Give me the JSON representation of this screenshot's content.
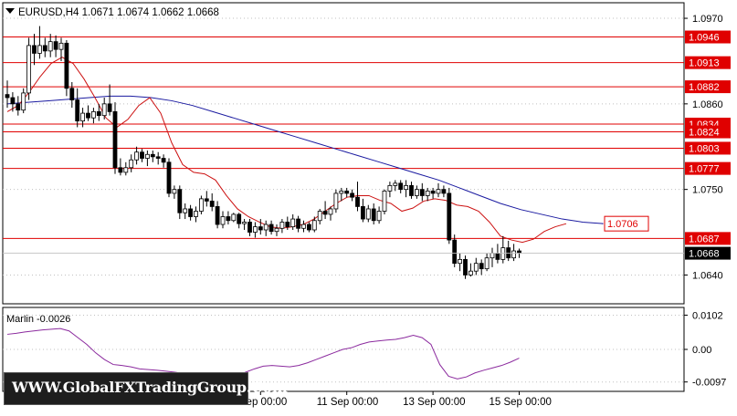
{
  "header": {
    "symbol_line": "EURUSD,H4  1.0671 1.0674 1.0662 1.0668"
  },
  "indicator": {
    "label": "Marlin -0.0026"
  },
  "watermark": {
    "text": "WWW.GlobalFXTradingGroup.Com"
  },
  "colors": {
    "background": "#ffffff",
    "grid": "#c0c0c0",
    "candle": "#000000",
    "level_line": "#e00000",
    "ma_slow": "#1a1aa0",
    "ma_fast": "#cc1111",
    "oscillator": "#8b2a9e"
  },
  "chart_data": [
    {
      "type": "candlestick",
      "title": "EURUSD,H4",
      "ohlc_readout": {
        "open": 1.0671,
        "high": 1.0674,
        "low": 1.0662,
        "close": 1.0668
      },
      "y_ticks": [
        "1.0970",
        "1.0860",
        "1.0750",
        "1.0640"
      ],
      "y_range": [
        1.0603,
        1.099
      ],
      "x_ticks": [
        {
          "label": "7 Sep 00:00",
          "bar": 47
        },
        {
          "label": "11 Sep 00:00",
          "bar": 63
        },
        {
          "label": "13 Sep 00:00",
          "bar": 79
        },
        {
          "label": "15 Sep 00:00",
          "bar": 95
        }
      ],
      "levels": [
        {
          "value": 1.0946,
          "label": "1.0946"
        },
        {
          "value": 1.0913,
          "label": "1.0913"
        },
        {
          "value": 1.0882,
          "label": "1.0882"
        },
        {
          "value": 1.0834,
          "label": "1.0834"
        },
        {
          "value": 1.0824,
          "label": "1.0824"
        },
        {
          "value": 1.0803,
          "label": "1.0803"
        },
        {
          "value": 1.0777,
          "label": "1.0777"
        },
        {
          "value": 1.0687,
          "label": "1.0687"
        }
      ],
      "price_tags": [
        {
          "value": 1.0706,
          "label": "1.0706"
        },
        {
          "value": 1.0668,
          "label": "1.0668"
        }
      ],
      "candles": [
        [
          1.0872,
          1.089,
          1.0855,
          1.0868
        ],
        [
          1.0868,
          1.0875,
          1.085,
          1.086
        ],
        [
          1.086,
          1.087,
          1.0845,
          1.0852
        ],
        [
          1.0852,
          1.088,
          1.0848,
          1.0874
        ],
        [
          1.0874,
          1.0945,
          1.0865,
          1.0935
        ],
        [
          1.0935,
          1.095,
          1.091,
          1.0925
        ],
        [
          1.0925,
          1.096,
          1.0918,
          1.0935
        ],
        [
          1.0935,
          1.0945,
          1.092,
          1.0928
        ],
        [
          1.0928,
          1.095,
          1.092,
          1.094
        ],
        [
          1.094,
          1.0948,
          1.092,
          1.093
        ],
        [
          1.093,
          1.0945,
          1.0915,
          1.0938
        ],
        [
          1.0938,
          1.0942,
          1.087,
          1.088
        ],
        [
          1.088,
          1.0888,
          1.0855,
          1.0865
        ],
        [
          1.0865,
          1.088,
          1.083,
          1.0838
        ],
        [
          1.0838,
          1.0855,
          1.083,
          1.0848
        ],
        [
          1.0848,
          1.0858,
          1.0838,
          1.0842
        ],
        [
          1.0842,
          1.0855,
          1.0835,
          1.085
        ],
        [
          1.085,
          1.086,
          1.0838,
          1.0845
        ],
        [
          1.0845,
          1.0868,
          1.084,
          1.086
        ],
        [
          1.086,
          1.0885,
          1.0845,
          1.085
        ],
        [
          1.085,
          1.0862,
          1.077,
          1.0778
        ],
        [
          1.0778,
          1.079,
          1.0768,
          1.0772
        ],
        [
          1.0772,
          1.0785,
          1.0768,
          1.0778
        ],
        [
          1.0778,
          1.0795,
          1.0772,
          1.0788
        ],
        [
          1.0788,
          1.0805,
          1.0782,
          1.0798
        ],
        [
          1.0798,
          1.0802,
          1.0785,
          1.079
        ],
        [
          1.079,
          1.08,
          1.078,
          1.0795
        ],
        [
          1.0795,
          1.08,
          1.0785,
          1.0792
        ],
        [
          1.0792,
          1.0798,
          1.0782,
          1.079
        ],
        [
          1.079,
          1.0795,
          1.0778,
          1.0785
        ],
        [
          1.0785,
          1.079,
          1.074,
          1.0745
        ],
        [
          1.0745,
          1.0755,
          1.0738,
          1.075
        ],
        [
          1.075,
          1.0755,
          1.0712,
          1.072
        ],
        [
          1.072,
          1.0732,
          1.0712,
          1.0725
        ],
        [
          1.0725,
          1.073,
          1.071,
          1.0715
        ],
        [
          1.0715,
          1.0728,
          1.0708,
          1.0722
        ],
        [
          1.0722,
          1.0742,
          1.0718,
          1.0738
        ],
        [
          1.0738,
          1.0748,
          1.0728,
          1.0735
        ],
        [
          1.0735,
          1.0745,
          1.0722,
          1.0728
        ],
        [
          1.0728,
          1.0735,
          1.07,
          1.0705
        ],
        [
          1.0705,
          1.0722,
          1.07,
          1.0715
        ],
        [
          1.0715,
          1.0722,
          1.0705,
          1.071
        ],
        [
          1.071,
          1.072,
          1.0708,
          1.0718
        ],
        [
          1.0718,
          1.072,
          1.07,
          1.0706
        ],
        [
          1.0706,
          1.0712,
          1.0698,
          1.0708
        ],
        [
          1.0708,
          1.0712,
          1.069,
          1.0695
        ],
        [
          1.0695,
          1.0708,
          1.0688,
          1.0702
        ],
        [
          1.0702,
          1.0712,
          1.0692,
          1.0698
        ],
        [
          1.0698,
          1.071,
          1.069,
          1.0705
        ],
        [
          1.0705,
          1.071,
          1.0692,
          1.0696
        ],
        [
          1.0696,
          1.0705,
          1.069,
          1.07
        ],
        [
          1.07,
          1.0712,
          1.0694,
          1.0708
        ],
        [
          1.0708,
          1.0715,
          1.0698,
          1.0702
        ],
        [
          1.0702,
          1.0718,
          1.0698,
          1.0712
        ],
        [
          1.0712,
          1.0716,
          1.0695,
          1.07
        ],
        [
          1.07,
          1.071,
          1.0695,
          1.0705
        ],
        [
          1.0705,
          1.0708,
          1.0695,
          1.0698
        ],
        [
          1.0698,
          1.0715,
          1.0695,
          1.071
        ],
        [
          1.071,
          1.0725,
          1.0705,
          1.0722
        ],
        [
          1.0722,
          1.0735,
          1.0712,
          1.0718
        ],
        [
          1.0718,
          1.0728,
          1.071,
          1.0725
        ],
        [
          1.0725,
          1.075,
          1.072,
          1.0745
        ],
        [
          1.0745,
          1.0752,
          1.0735,
          1.0748
        ],
        [
          1.0748,
          1.0752,
          1.074,
          1.0745
        ],
        [
          1.0745,
          1.075,
          1.0735,
          1.074
        ],
        [
          1.074,
          1.076,
          1.0722,
          1.0728
        ],
        [
          1.0728,
          1.0738,
          1.0708,
          1.0712
        ],
        [
          1.0712,
          1.073,
          1.0708,
          1.0725
        ],
        [
          1.0725,
          1.0732,
          1.0705,
          1.071
        ],
        [
          1.071,
          1.0728,
          1.0706,
          1.0722
        ],
        [
          1.0722,
          1.075,
          1.0718,
          1.0748
        ],
        [
          1.0748,
          1.076,
          1.074,
          1.0755
        ],
        [
          1.0755,
          1.0762,
          1.0748,
          1.0758
        ],
        [
          1.0758,
          1.0762,
          1.0745,
          1.075
        ],
        [
          1.075,
          1.0762,
          1.074,
          1.0755
        ],
        [
          1.0755,
          1.076,
          1.0738,
          1.0742
        ],
        [
          1.0742,
          1.0755,
          1.0738,
          1.075
        ],
        [
          1.075,
          1.0758,
          1.0735,
          1.0742
        ],
        [
          1.0742,
          1.0752,
          1.0735,
          1.0748
        ],
        [
          1.0748,
          1.0752,
          1.0738,
          1.0745
        ],
        [
          1.0745,
          1.0758,
          1.074,
          1.075
        ],
        [
          1.075,
          1.0755,
          1.074,
          1.0745
        ],
        [
          1.0745,
          1.0752,
          1.068,
          1.0685
        ],
        [
          1.0685,
          1.0692,
          1.065,
          1.0655
        ],
        [
          1.0655,
          1.0668,
          1.0645,
          1.066
        ],
        [
          1.066,
          1.0665,
          1.0635,
          1.064
        ],
        [
          1.064,
          1.0655,
          1.0638,
          1.0645
        ],
        [
          1.0645,
          1.0662,
          1.064,
          1.0655
        ],
        [
          1.0655,
          1.066,
          1.064,
          1.0648
        ],
        [
          1.0648,
          1.0668,
          1.0645,
          1.0662
        ],
        [
          1.0662,
          1.0675,
          1.065,
          1.0668
        ],
        [
          1.0668,
          1.068,
          1.0655,
          1.066
        ],
        [
          1.066,
          1.069,
          1.0655,
          1.0675
        ],
        [
          1.0675,
          1.0684,
          1.0658,
          1.0662
        ],
        [
          1.0662,
          1.068,
          1.0658,
          1.0671
        ],
        [
          1.0671,
          1.0674,
          1.0662,
          1.0668
        ]
      ],
      "ma_slow": [
        1.086,
        1.0862,
        1.0864,
        1.0866,
        1.0868,
        1.087,
        1.087,
        1.0868,
        1.0864,
        1.0858,
        1.085,
        1.0842,
        1.0834,
        1.0826,
        1.0818,
        1.081,
        1.0802,
        1.0794,
        1.0786,
        1.0778,
        1.077,
        1.0762,
        1.0752,
        1.0742,
        1.0732,
        1.0724,
        1.0718,
        1.0712,
        1.0708,
        1.0706
      ],
      "ma_fast": [
        1.085,
        1.0858,
        1.0875,
        1.0895,
        1.0912,
        1.092,
        1.0912,
        1.0892,
        1.0868,
        1.0842,
        1.083,
        1.084,
        1.0858,
        1.0868,
        1.0848,
        1.081,
        1.0782,
        1.0772,
        1.077,
        1.0762,
        1.0742,
        1.0725,
        1.0715,
        1.0708,
        1.0702,
        1.07,
        1.0702,
        1.0705,
        1.0712,
        1.0722,
        1.0732,
        1.074,
        1.0742,
        1.0742,
        1.0736,
        1.0732,
        1.0722,
        1.0726,
        1.0735,
        1.0738,
        1.0736,
        1.073,
        1.0728,
        1.0722,
        1.0708,
        1.069,
        1.0685,
        1.0682,
        1.0686,
        1.0696,
        1.0702,
        1.0706
      ],
      "oscillator": {
        "name": "Marlin",
        "value": -0.0026,
        "y_ticks": [
          "0.0102",
          "0.00",
          "-0.0097"
        ],
        "y_range": [
          -0.0125,
          0.0125
        ],
        "values": [
          0.0045,
          0.0048,
          0.0052,
          0.0055,
          0.0058,
          0.006,
          0.0062,
          0.0055,
          0.0035,
          0.0015,
          -0.001,
          -0.003,
          -0.0045,
          -0.0048,
          -0.0052,
          -0.0058,
          -0.006,
          -0.0062,
          -0.0065,
          -0.0068,
          -0.0072,
          -0.0082,
          -0.0088,
          -0.0092,
          -0.009,
          -0.0085,
          -0.0078,
          -0.0068,
          -0.0058,
          -0.005,
          -0.0048,
          -0.005,
          -0.0052,
          -0.0048,
          -0.004,
          -0.003,
          -0.002,
          -0.001,
          0.0,
          0.0005,
          0.0015,
          0.0022,
          0.0025,
          0.0028,
          0.003,
          0.0035,
          0.0042,
          0.0035,
          0.0015,
          -0.0045,
          -0.008,
          -0.0088,
          -0.0082,
          -0.007,
          -0.0062,
          -0.0055,
          -0.0048,
          -0.0038,
          -0.0026
        ]
      }
    }
  ]
}
